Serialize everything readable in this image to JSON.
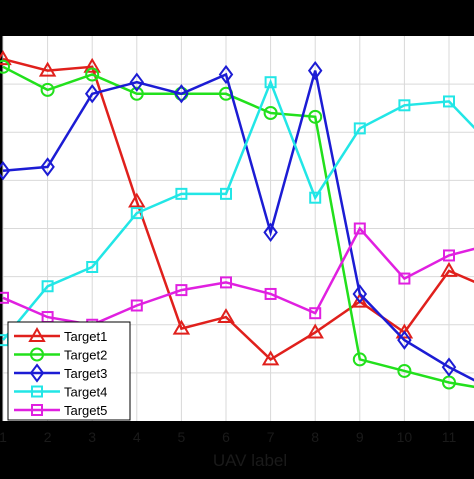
{
  "chart_data": {
    "type": "line",
    "xlabel": "UAV label",
    "ylabel": "",
    "x": [
      1,
      2,
      3,
      4,
      5,
      6,
      7,
      8,
      9,
      10,
      11,
      12
    ],
    "x_tick_labels": [
      "1",
      "2",
      "3",
      "4",
      "5",
      "6",
      "7",
      "8",
      "9",
      "10",
      "11"
    ],
    "grid": true,
    "legend_position": "bottom-left",
    "series": [
      {
        "name": "Target1",
        "color": "#e0201c",
        "marker": "triangle",
        "values": [
          0.94,
          0.91,
          0.92,
          0.57,
          0.24,
          0.27,
          0.16,
          0.23,
          0.31,
          0.23,
          0.39,
          0.34
        ]
      },
      {
        "name": "Target2",
        "color": "#22e01c",
        "marker": "circle",
        "values": [
          0.92,
          0.86,
          0.9,
          0.85,
          0.85,
          0.85,
          0.8,
          0.79,
          0.16,
          0.13,
          0.1,
          0.08
        ]
      },
      {
        "name": "Target3",
        "color": "#1c1cd4",
        "marker": "diamond",
        "values": [
          0.65,
          0.66,
          0.85,
          0.88,
          0.85,
          0.9,
          0.49,
          0.91,
          0.33,
          0.21,
          0.14,
          0.08
        ]
      },
      {
        "name": "Target4",
        "color": "#22e6e6",
        "marker": "square",
        "values": [
          0.21,
          0.35,
          0.4,
          0.54,
          0.59,
          0.59,
          0.88,
          0.58,
          0.76,
          0.82,
          0.83,
          0.71
        ]
      },
      {
        "name": "Target5",
        "color": "#e020e0",
        "marker": "square",
        "values": [
          0.32,
          0.27,
          0.25,
          0.3,
          0.34,
          0.36,
          0.33,
          0.28,
          0.5,
          0.37,
          0.43,
          0.46
        ]
      }
    ]
  }
}
